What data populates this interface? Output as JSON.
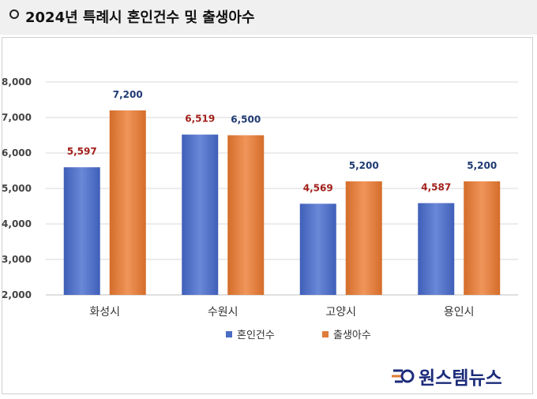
{
  "header": {
    "title": "2024년 특례시 혼인건수 및 출생아수"
  },
  "logo": {
    "text": "원스템뉴스"
  },
  "colors": {
    "series1": "#4a6cc4",
    "series2": "#e07c39",
    "label1": "#a3211c",
    "label2": "#1f3a73"
  },
  "chart_data": {
    "type": "bar",
    "title": "",
    "xlabel": "",
    "ylabel": "",
    "categories": [
      "화성시",
      "수원시",
      "고양시",
      "용인시"
    ],
    "ylim": [
      2000,
      8000
    ],
    "yticks": [
      "2,000",
      "3,000",
      "4,000",
      "5,000",
      "6,000",
      "7,000",
      "8,000"
    ],
    "grid": true,
    "legend": "bottom",
    "series": [
      {
        "name": "혼인건수",
        "values": [
          5597,
          6519,
          4569,
          4587
        ],
        "labels": [
          "5,597",
          "6,519",
          "4,569",
          "4,587"
        ]
      },
      {
        "name": "출생아수",
        "values": [
          7200,
          6500,
          5200,
          5200
        ],
        "labels": [
          "7,200",
          "6,500",
          "5,200",
          "5,200"
        ]
      }
    ]
  }
}
